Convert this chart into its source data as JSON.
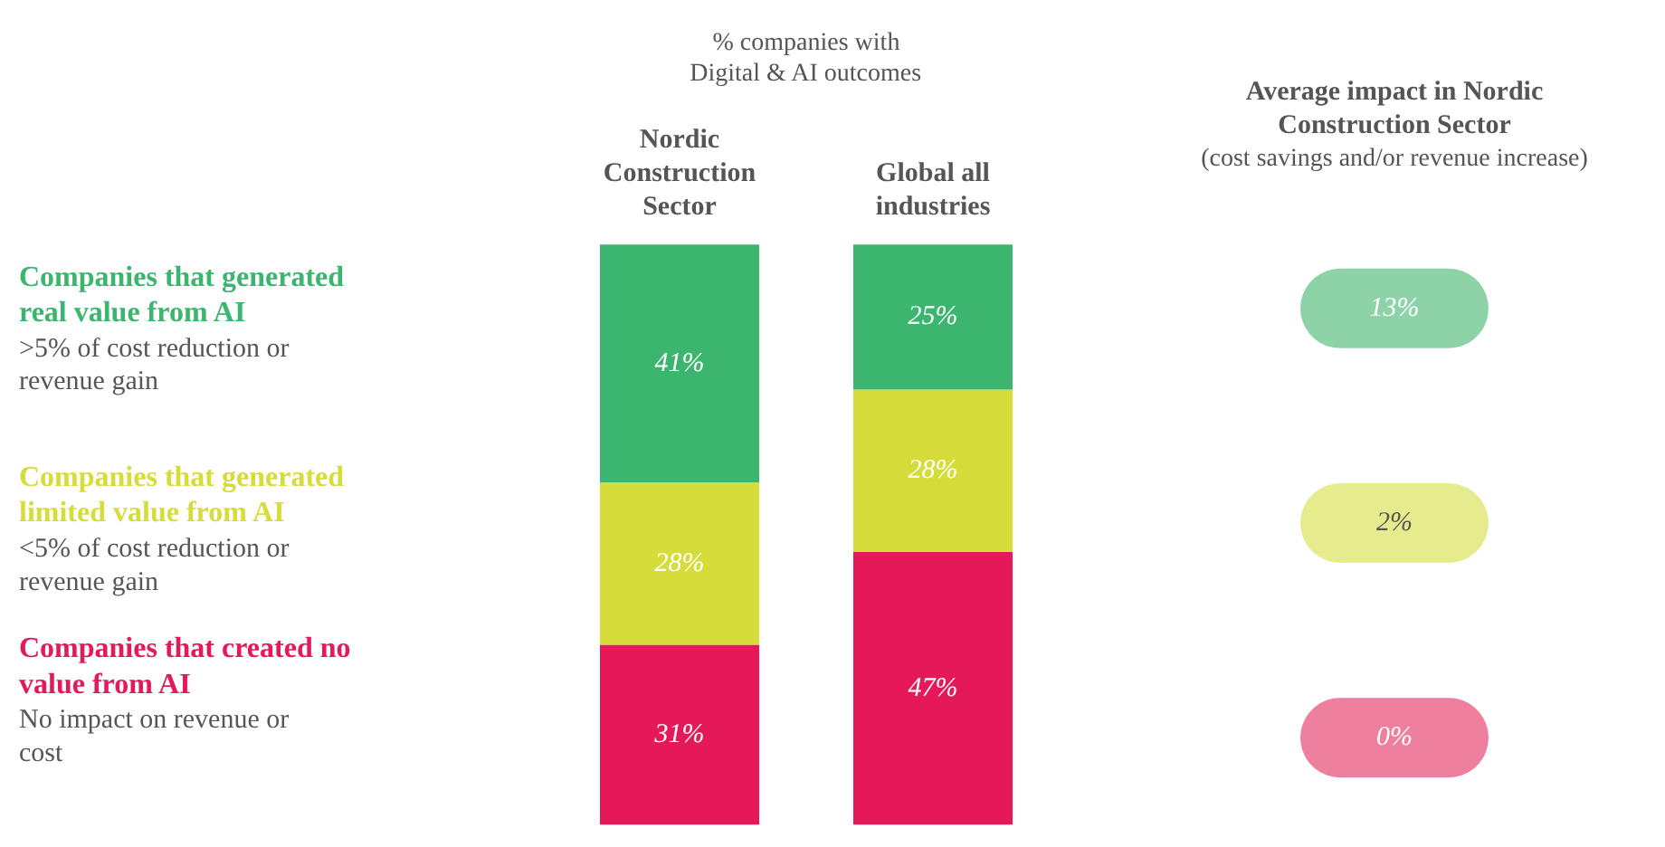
{
  "chart_data": [
    {
      "type": "bar",
      "title": "% companies with Digital & AI outcomes",
      "stacked": true,
      "categories": [
        "Nordic Construction Sector",
        "Global all industries"
      ],
      "series": [
        {
          "name": "Companies that created no value from AI",
          "color": "#e5185a",
          "values": [
            31,
            47
          ],
          "value_labels": [
            "31%",
            "47%"
          ]
        },
        {
          "name": "Companies that generated limited value from AI",
          "color": "#d6dc3a",
          "values": [
            28,
            28
          ],
          "value_labels": [
            "28%",
            "28%"
          ]
        },
        {
          "name": "Companies that generated real value from AI",
          "color": "#3cb56e",
          "values": [
            41,
            25
          ],
          "value_labels": [
            "41%",
            "25%"
          ]
        }
      ],
      "annotations": [
        "No impact on revenue or cost",
        "<5% of cost reduction or revenue gain",
        ">5% of cost reduction or revenue gain"
      ]
    },
    {
      "type": "other",
      "title": "Average impact in Nordic Construction Sector",
      "subtitle": "(cost savings and/or revenue increase)",
      "categories": [
        "13%",
        "2%",
        "0%"
      ],
      "colors": [
        "#8ed3a8",
        "#e6ec8e",
        "#ef7f9f"
      ]
    }
  ]
}
